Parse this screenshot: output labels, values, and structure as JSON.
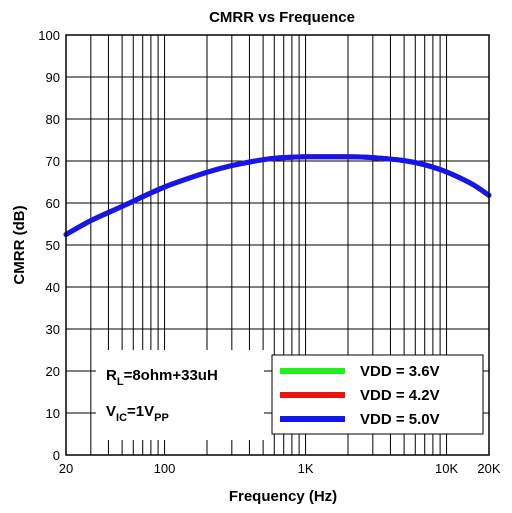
{
  "chart_data": {
    "type": "line",
    "title": "CMRR vs Frequence",
    "xlabel": "Frequency (Hz)",
    "ylabel": "CMRR (dB)",
    "x_scale": "log",
    "xlim": [
      20,
      20000
    ],
    "ylim": [
      0,
      100
    ],
    "y_ticks": [
      0,
      10,
      20,
      30,
      40,
      50,
      60,
      70,
      80,
      90,
      100
    ],
    "x_ticks": [
      {
        "value": 20,
        "label": "20"
      },
      {
        "value": 100,
        "label": "100"
      },
      {
        "value": 1000,
        "label": "1K"
      },
      {
        "value": 10000,
        "label": "10K"
      },
      {
        "value": 20000,
        "label": "20K"
      }
    ],
    "grid": true,
    "legend_position": "bottom-right",
    "annotations": {
      "rl": {
        "main": "R",
        "sub": "L",
        "rest": "=8ohm+33uH"
      },
      "vic": {
        "main": "V",
        "sub": "IC",
        "mid": "=1V",
        "sub2": "PP"
      }
    },
    "x": [
      20,
      30,
      50,
      100,
      200,
      300,
      500,
      700,
      1000,
      2000,
      3000,
      5000,
      7000,
      10000,
      15000,
      20000
    ],
    "series": [
      {
        "name": "VDD = 3.6V",
        "color": "#22ee22",
        "values": [
          52.5,
          55.8,
          59.2,
          63.8,
          67.3,
          68.9,
          70.3,
          70.8,
          71.0,
          71.0,
          70.8,
          70.1,
          69.1,
          67.4,
          64.6,
          61.8
        ]
      },
      {
        "name": "VDD = 4.2V",
        "color": "#ee1111",
        "values": [
          52.5,
          55.8,
          59.2,
          63.8,
          67.3,
          68.9,
          70.3,
          70.8,
          71.0,
          71.0,
          70.8,
          70.1,
          69.1,
          67.4,
          64.6,
          61.8
        ]
      },
      {
        "name": "VDD = 5.0V",
        "color": "#1515ee",
        "values": [
          52.5,
          55.8,
          59.2,
          63.8,
          67.3,
          68.9,
          70.3,
          70.8,
          71.0,
          71.0,
          70.8,
          70.1,
          69.1,
          67.4,
          64.6,
          61.8
        ]
      }
    ]
  }
}
